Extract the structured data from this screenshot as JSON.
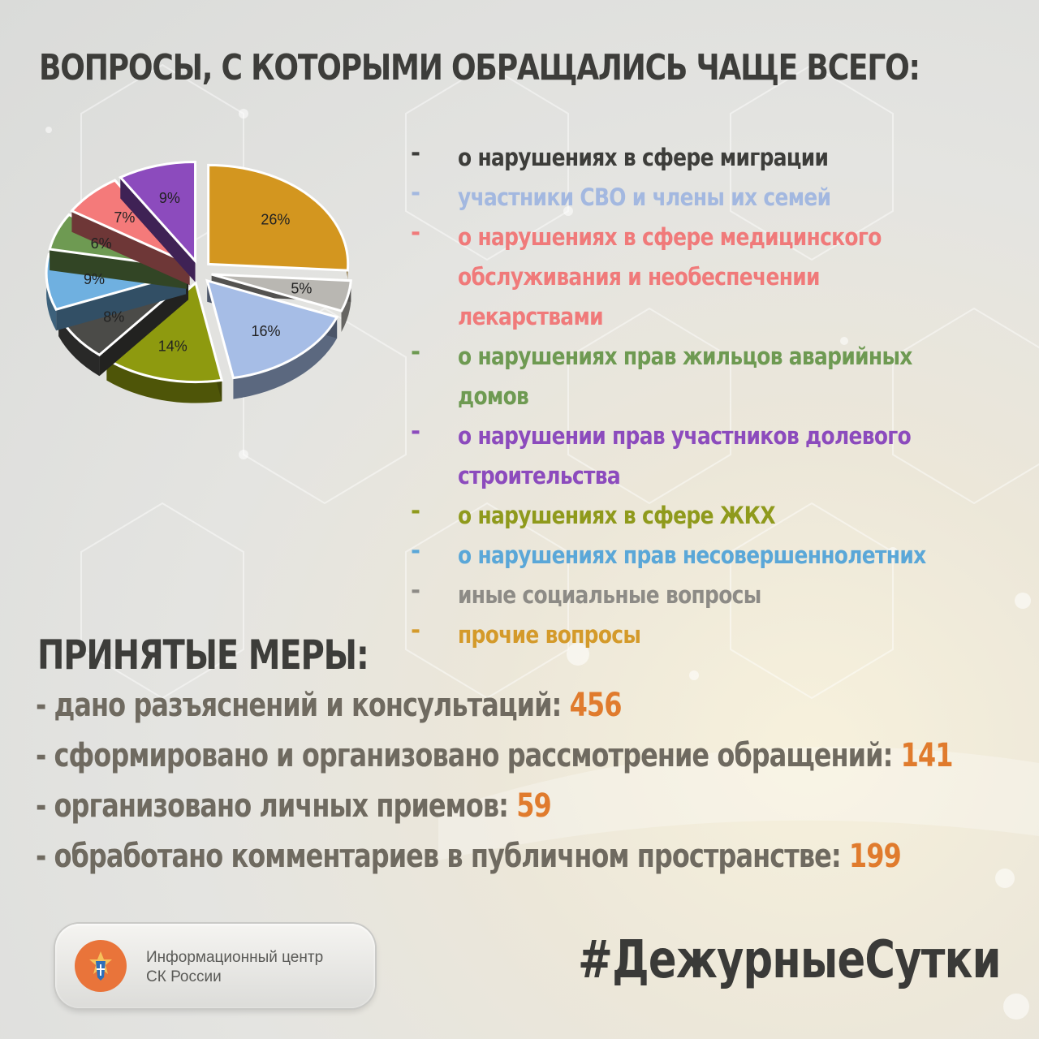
{
  "title": "ВОПРОСЫ, С КОТОРЫМИ ОБРАЩАЛИСЬ ЧАЩЕ ВСЕГО:",
  "legend": {
    "dash": "-",
    "items": [
      {
        "label": "о нарушениях в сфере миграции",
        "color": "#3d3d3a"
      },
      {
        "label": "участники СВО и члены их семей",
        "color": "#a3b8e0"
      },
      {
        "label": "о нарушениях в сфере медицинского обслуживания и необеспечении лекарствами",
        "color": "#f07a7a"
      },
      {
        "label": "о нарушениях прав жильцов аварийных домов",
        "color": "#6e9a52"
      },
      {
        "label": "о нарушении прав участников долевого строительства",
        "color": "#8c4bbd"
      },
      {
        "label": "о нарушениях в сфере ЖКХ",
        "color": "#8f9a1c"
      },
      {
        "label": "о нарушениях прав несовершеннолетних",
        "color": "#5aa7d8"
      },
      {
        "label": "иные социальные вопросы",
        "color": "#8d8b86"
      },
      {
        "label": "прочие вопросы",
        "color": "#d49a2a"
      }
    ]
  },
  "chart_data": {
    "type": "pie",
    "slices": [
      {
        "label": "26%",
        "value": 26,
        "color": "#d3961f"
      },
      {
        "label": "5%",
        "value": 5,
        "color": "#b9b7b2"
      },
      {
        "label": "16%",
        "value": 16,
        "color": "#a6bde6"
      },
      {
        "label": "14%",
        "value": 14,
        "color": "#8e9a0f"
      },
      {
        "label": "8%",
        "value": 8,
        "color": "#4b4b48"
      },
      {
        "label": "9%",
        "value": 9,
        "color": "#6fb0e0"
      },
      {
        "label": "6%",
        "value": 6,
        "color": "#6e9a52"
      },
      {
        "label": "7%",
        "value": 7,
        "color": "#f47a7a"
      },
      {
        "label": "9%",
        "value": 9,
        "color": "#8c4bbd"
      }
    ]
  },
  "measures": {
    "title": "ПРИНЯТЫЕ МЕРЫ:",
    "items": [
      {
        "label": "- дано разъяснений и консультаций:",
        "value": "456"
      },
      {
        "label": "- сформировано и организовано рассмотрение обращений:",
        "value": "141"
      },
      {
        "label": "- организовано личных приемов:",
        "value": "59"
      },
      {
        "label": "- обработано комментариев в публичном пространстве:",
        "value": "199"
      }
    ]
  },
  "footer": {
    "org_line1": "Информационный центр",
    "org_line2": "СК России",
    "hashtag": "#ДежурныеСутки"
  }
}
